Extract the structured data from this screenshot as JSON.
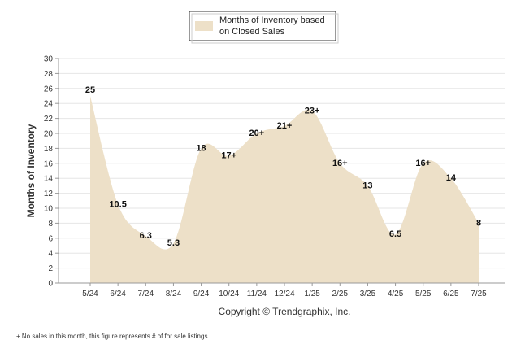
{
  "chart_data": {
    "type": "area",
    "categories": [
      "5/24",
      "6/24",
      "7/24",
      "8/24",
      "9/24",
      "10/24",
      "11/24",
      "12/24",
      "1/25",
      "2/25",
      "3/25",
      "4/25",
      "5/25",
      "6/25",
      "7/25"
    ],
    "series": [
      {
        "name": "Months of Inventory based on Closed Sales",
        "values": [
          25,
          10.5,
          6.3,
          5.3,
          18,
          17,
          20,
          21,
          23,
          16,
          13,
          6.5,
          16,
          14,
          8
        ],
        "labels": [
          "25",
          "10.5",
          "6.3",
          "5.3",
          "18",
          "17+",
          "20+",
          "21+",
          "23+",
          "16+",
          "13",
          "6.5",
          "16+",
          "14",
          "8"
        ],
        "color": "#ede0c8"
      }
    ],
    "ylabel": "Months of Inventory",
    "ylim": [
      0,
      30
    ],
    "yticks": [
      0,
      2,
      4,
      6,
      8,
      10,
      12,
      14,
      16,
      18,
      20,
      22,
      24,
      26,
      28,
      30
    ],
    "grid": true,
    "legend_position": "top-center"
  },
  "legend": {
    "line1": "Months of Inventory based",
    "line2": "on Closed Sales"
  },
  "copyright": "Copyright © Trendgraphix, Inc.",
  "footnote": "+  No sales in this month, this figure represents # of for sale listings",
  "colors": {
    "grid": "#e6e6e6",
    "axis": "#999999"
  }
}
